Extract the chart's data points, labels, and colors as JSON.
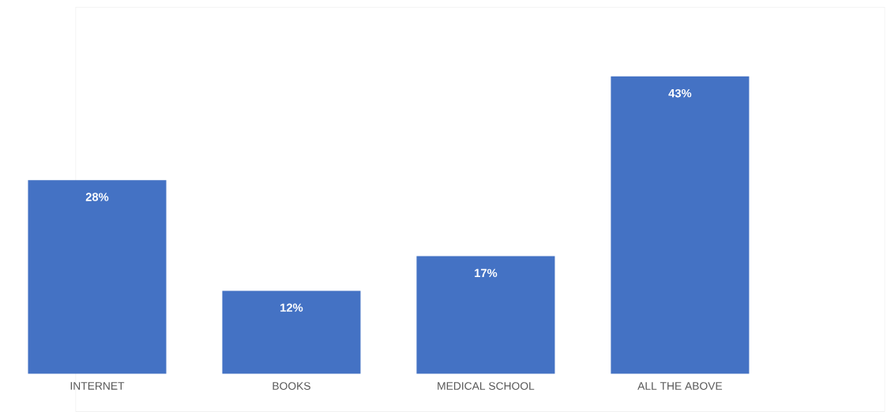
{
  "chart_data": {
    "type": "bar",
    "categories": [
      "INTERNET",
      "BOOKS",
      "MEDICAL SCHOOL",
      "ALL THE ABOVE"
    ],
    "values": [
      28,
      12,
      17,
      43
    ],
    "value_labels": [
      "28%",
      "12%",
      "17%",
      "43%"
    ],
    "color": "#4472c4"
  }
}
